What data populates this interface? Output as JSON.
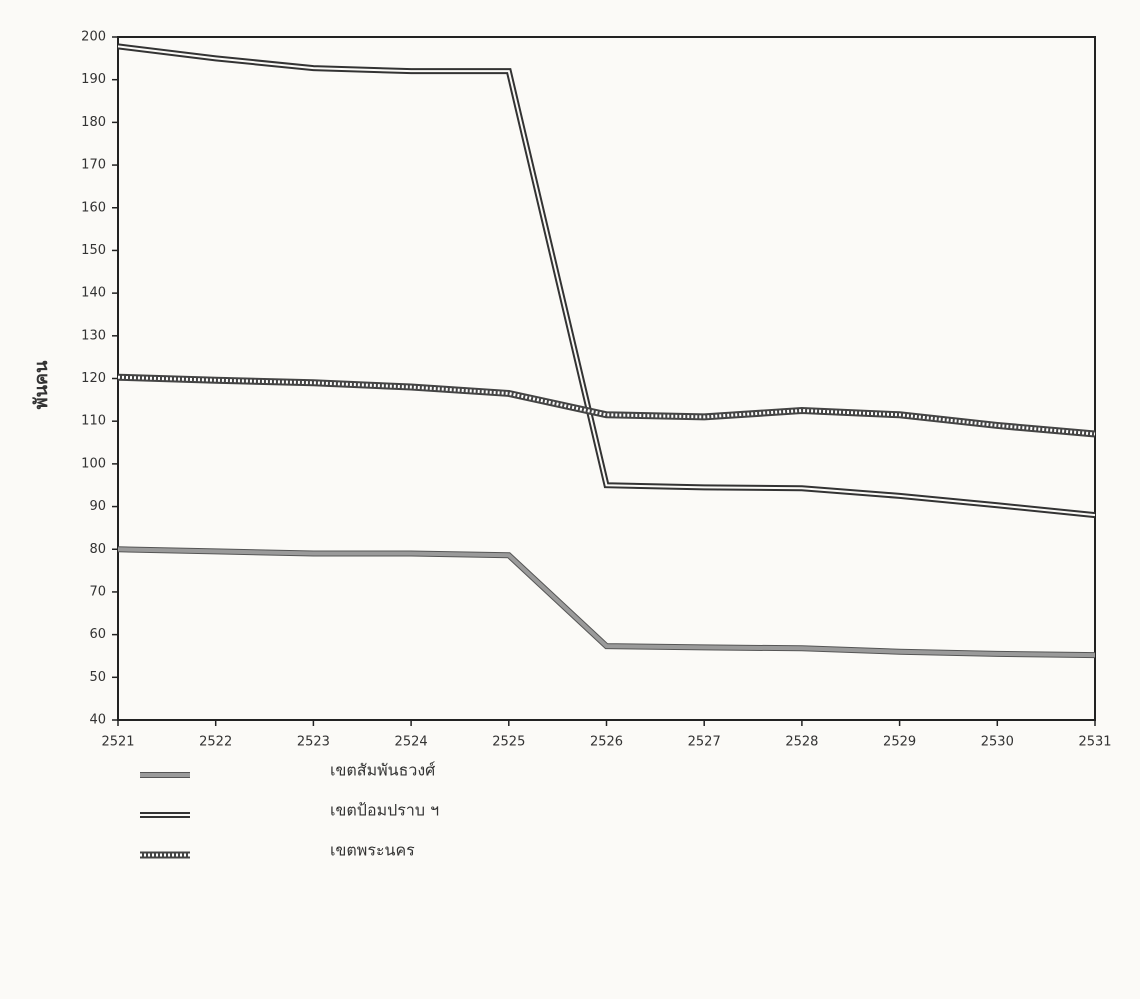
{
  "chart_data": {
    "type": "line",
    "y_label": "พันคน",
    "x": [
      2521,
      2522,
      2523,
      2524,
      2525,
      2526,
      2527,
      2528,
      2529,
      2530,
      2531
    ],
    "xlim": [
      2521,
      2531
    ],
    "xticks": [
      2521,
      2522,
      2523,
      2524,
      2525,
      2526,
      2527,
      2528,
      2529,
      2530,
      2531
    ],
    "ylim": [
      40,
      200
    ],
    "yticks": [
      40,
      50,
      60,
      70,
      80,
      90,
      100,
      110,
      120,
      130,
      140,
      150,
      160,
      170,
      180,
      190,
      200
    ],
    "series": [
      {
        "name": "เขตสัมพันธวงศ์",
        "color": "#9a9a9a",
        "line_style": "solid",
        "values": [
          80,
          79.5,
          79,
          79,
          78.6,
          57.3,
          57,
          56.8,
          56,
          55.5,
          55.2
        ]
      },
      {
        "name": "เขตป้อมปราบ ฯ",
        "color": "#333333",
        "line_style": "double",
        "values": [
          197.8,
          195,
          192.7,
          192,
          192,
          95,
          94.5,
          94.3,
          92.5,
          90.3,
          88
        ]
      },
      {
        "name": "เขตพระนคร",
        "color": "#444444",
        "line_style": "dotted",
        "values": [
          120.3,
          119.6,
          119,
          118,
          116.5,
          111.5,
          111,
          112.5,
          111.5,
          109,
          107
        ]
      }
    ]
  }
}
